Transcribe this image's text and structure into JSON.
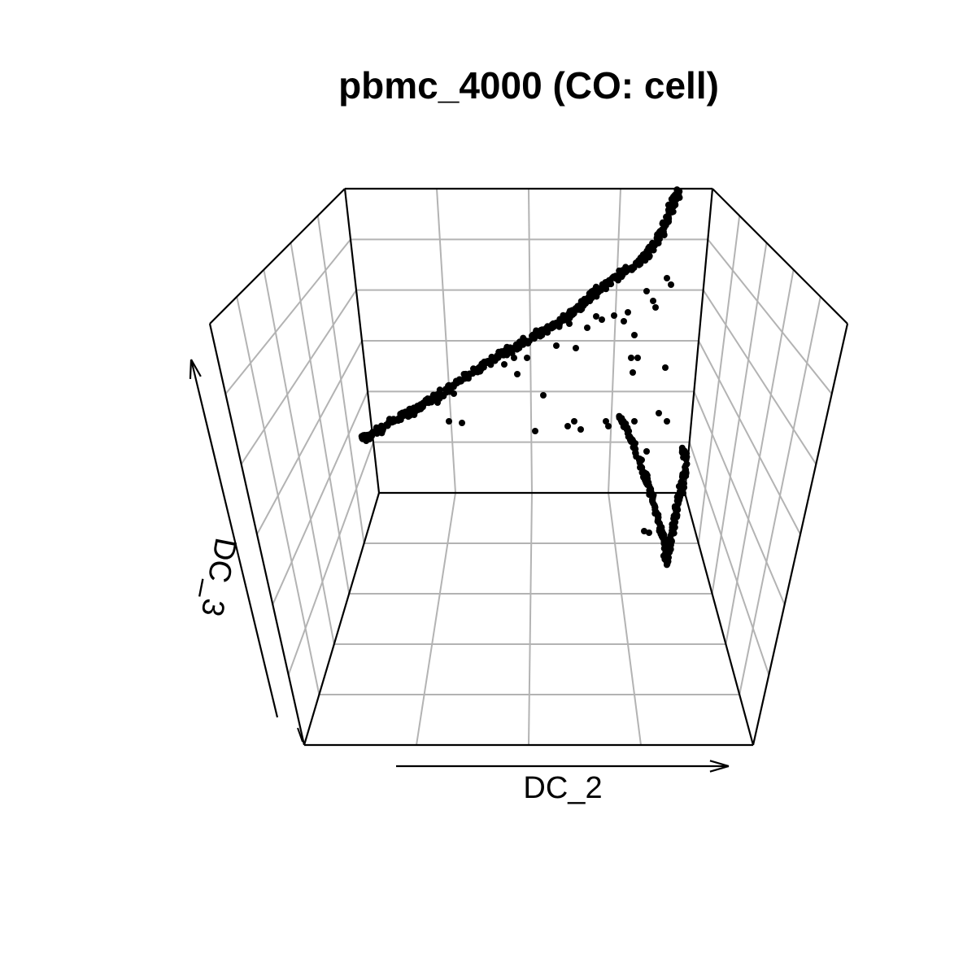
{
  "chart_data": {
    "type": "scatter",
    "projection": "3d",
    "title": "pbmc_4000 (CO: cell)",
    "xlabel": "DC_2",
    "ylabel": "",
    "zlabel": "DC_3",
    "point_color": "#000000",
    "grid_color": "#b3b3b3",
    "box_color": "#000000",
    "grid": true,
    "tick_labels": false,
    "branches": [
      {
        "name": "",
        "path": [
          [
            446,
            540
          ],
          [
            520,
            498
          ],
          [
            600,
            445
          ],
          [
            690,
            395
          ],
          [
            750,
            345
          ],
          [
            790,
            320
          ],
          [
            808,
            295
          ],
          [
            820,
            270
          ],
          [
            835,
            232
          ]
        ],
        "spread": 6,
        "count": 520
      },
      {
        "name": "",
        "path": [
          [
            762,
            510
          ],
          [
            778,
            545
          ],
          [
            795,
            590
          ],
          [
            810,
            640
          ],
          [
            818,
            670
          ],
          [
            820,
            695
          ]
        ],
        "spread": 4,
        "count": 150
      },
      {
        "name": "",
        "path": [
          [
            820,
            695
          ],
          [
            825,
            660
          ],
          [
            832,
            625
          ],
          [
            840,
            590
          ],
          [
            845,
            565
          ],
          [
            838,
            550
          ]
        ],
        "spread": 4,
        "count": 110
      }
    ],
    "outliers": [
      [
        684,
        425
      ],
      [
        708,
        428
      ],
      [
        722,
        403
      ],
      [
        740,
        393
      ],
      [
        755,
        388
      ],
      [
        772,
        384
      ],
      [
        780,
        412
      ],
      [
        776,
        440
      ],
      [
        784,
        440
      ],
      [
        778,
        458
      ],
      [
        818,
        452
      ],
      [
        632,
        440
      ],
      [
        648,
        440
      ],
      [
        636,
        460
      ],
      [
        668,
        486
      ],
      [
        552,
        518
      ],
      [
        568,
        520
      ],
      [
        658,
        530
      ],
      [
        698,
        524
      ],
      [
        706,
        518
      ],
      [
        714,
        528
      ],
      [
        745,
        518
      ],
      [
        748,
        524
      ],
      [
        780,
        518
      ],
      [
        795,
        555
      ],
      [
        792,
        653
      ],
      [
        798,
        655
      ],
      [
        810,
        508
      ],
      [
        820,
        518
      ],
      [
        820,
        342
      ],
      [
        825,
        350
      ],
      [
        803,
        370
      ],
      [
        806,
        378
      ],
      [
        795,
        358
      ],
      [
        538,
        495
      ],
      [
        558,
        484
      ],
      [
        620,
        448
      ],
      [
        700,
        398
      ],
      [
        733,
        389
      ],
      [
        767,
        395
      ]
    ]
  }
}
